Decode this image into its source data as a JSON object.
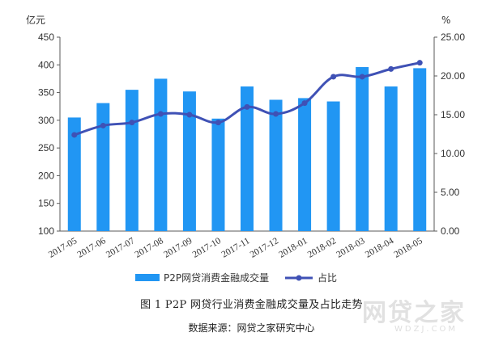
{
  "chart_data": {
    "type": "bar",
    "categories": [
      "2017-05",
      "2017-06",
      "2017-07",
      "2017-08",
      "2017-09",
      "2017-10",
      "2017-11",
      "2017-12",
      "2018-01",
      "2018-02",
      "2018-03",
      "2018-04",
      "2018-05"
    ],
    "series": [
      {
        "name": "P2P网贷消费金融成交量",
        "type": "bar",
        "axis": "left",
        "values": [
          305,
          331,
          355,
          375,
          352,
          303,
          361,
          337,
          340,
          334,
          396,
          361,
          394
        ]
      },
      {
        "name": "占比",
        "type": "line",
        "axis": "right",
        "values": [
          12.4,
          13.6,
          14.0,
          15.1,
          15.0,
          14.0,
          16.0,
          15.1,
          16.5,
          19.9,
          19.9,
          20.9,
          21.7
        ]
      }
    ],
    "ylabel": "亿元",
    "y2label": "%",
    "ylim": [
      100,
      450
    ],
    "y2lim": [
      0,
      25
    ],
    "yticks": [
      "100",
      "150",
      "200",
      "250",
      "300",
      "350",
      "400",
      "450"
    ],
    "y2ticks": [
      "0.00",
      "5.00",
      "10.00",
      "15.00",
      "20.00",
      "25.00"
    ],
    "grid": false,
    "legend": "bottom"
  },
  "colors": {
    "bar": "#2196F3",
    "line": "#3F51B5",
    "axis": "#595959",
    "text": "#333333"
  },
  "caption": {
    "title": "图 1   P2P 网贷行业消费金融成交量及占比走势",
    "source": "数据来源：网贷之家研究中心"
  },
  "watermark": {
    "main": "网贷之家",
    "sub": "WDZJ.COM"
  }
}
